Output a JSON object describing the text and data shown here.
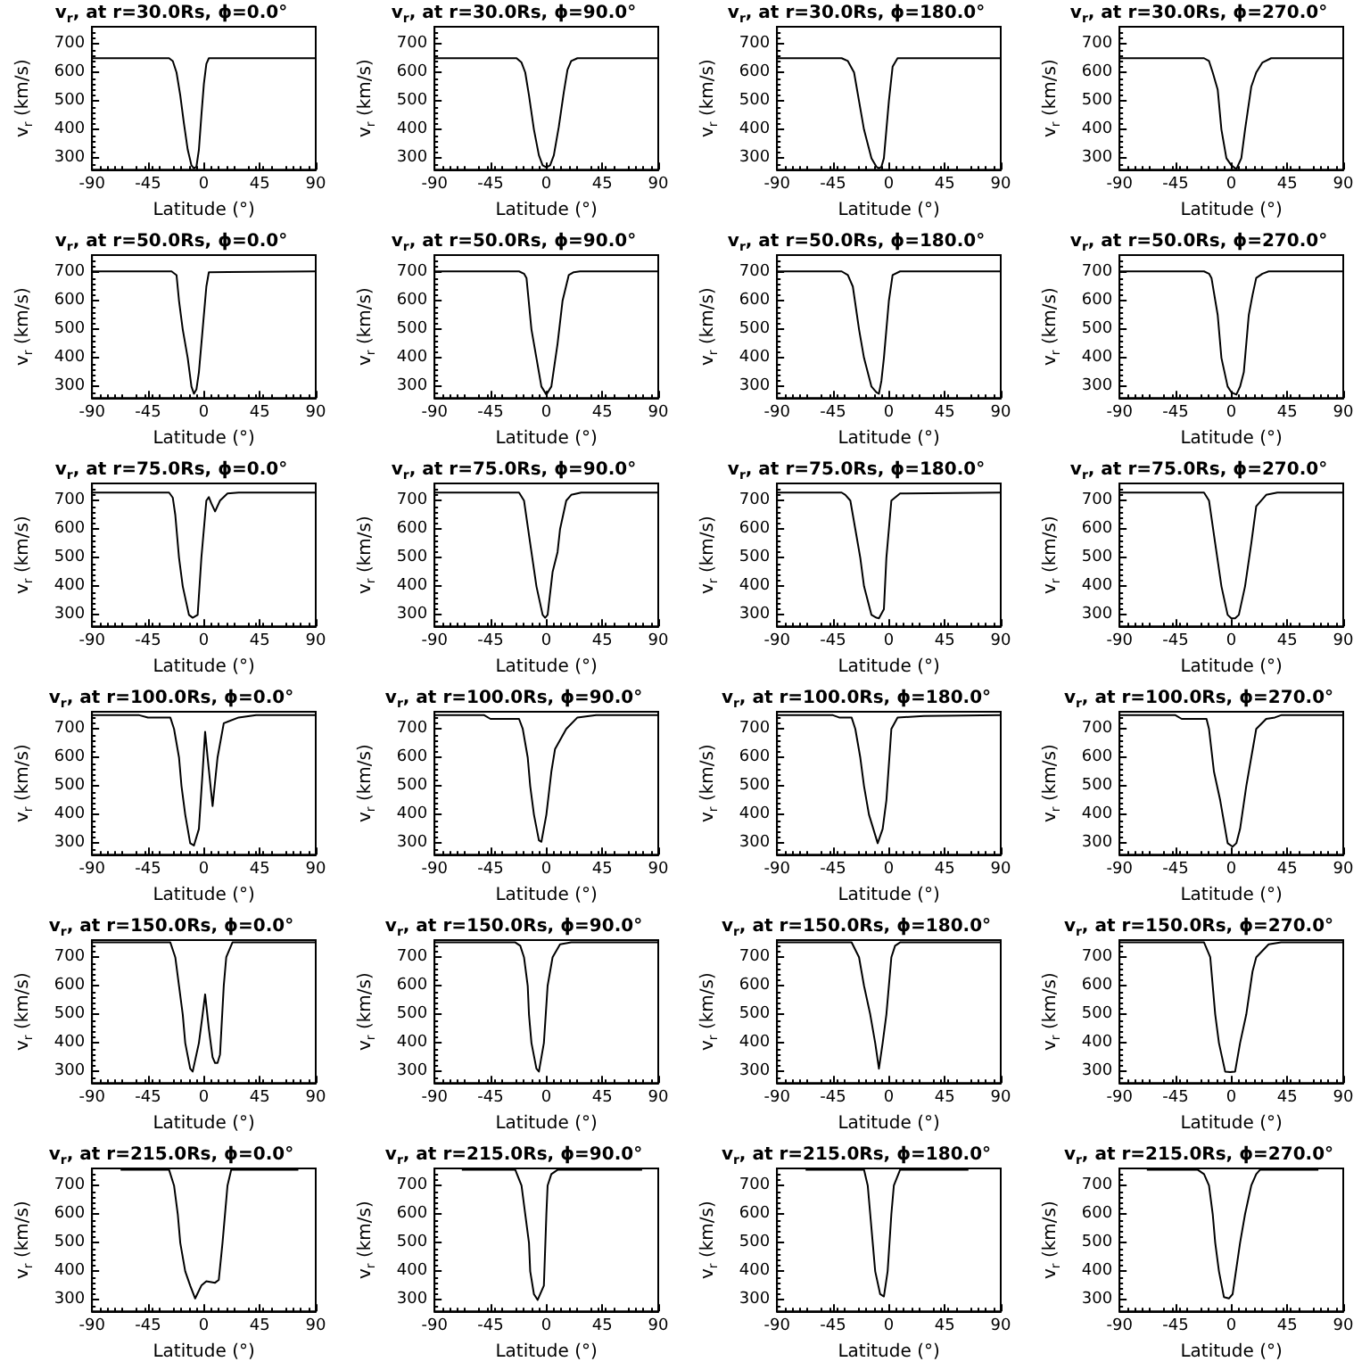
{
  "chart_data": [
    {
      "type": "line",
      "title": "v$_{r}$, at r=30.0Rs, ϕ=0.0°",
      "xlabel": "Latitude (°)",
      "ylabel": "v$_{r}$ (km/s)",
      "xlim": [
        -90,
        90
      ],
      "xticks": [
        -90,
        -45,
        0,
        45,
        90
      ],
      "ylim": [
        260,
        760
      ],
      "yticks": [
        300,
        400,
        500,
        600,
        700
      ],
      "series": [
        {
          "color": "#000000",
          "x": [
            -90,
            -28,
            -25,
            -22,
            -19,
            -16,
            -13,
            -10,
            -8,
            -6,
            -4,
            -2,
            0,
            2,
            4,
            90
          ],
          "values": [
            650,
            650,
            640,
            600,
            520,
            420,
            330,
            275,
            265,
            270,
            330,
            450,
            560,
            630,
            650,
            650
          ]
        }
      ]
    },
    {
      "type": "line",
      "title": "v$_{r}$, at r=30.0Rs, ϕ=90.0°",
      "xlabel": "Latitude (°)",
      "ylabel": "v$_{r}$ (km/s)",
      "xlim": [
        -90,
        90
      ],
      "xticks": [
        -90,
        -45,
        0,
        45,
        90
      ],
      "ylim": [
        260,
        760
      ],
      "yticks": [
        300,
        400,
        500,
        600,
        700
      ],
      "series": [
        {
          "color": "#000000",
          "x": [
            -90,
            -24,
            -20,
            -17,
            -14,
            -10,
            -6,
            -3,
            0,
            3,
            6,
            10,
            14,
            17,
            20,
            25,
            90
          ],
          "values": [
            650,
            650,
            635,
            600,
            520,
            400,
            310,
            275,
            268,
            275,
            310,
            410,
            530,
            610,
            640,
            650,
            650
          ]
        }
      ]
    },
    {
      "type": "line",
      "title": "v$_{r}$, at r=30.0Rs, ϕ=180.0°",
      "xlabel": "Latitude (°)",
      "ylabel": "v$_{r}$ (km/s)",
      "xlim": [
        -90,
        90
      ],
      "xticks": [
        -90,
        -45,
        0,
        45,
        90
      ],
      "ylim": [
        260,
        760
      ],
      "yticks": [
        300,
        400,
        500,
        600,
        700
      ],
      "series": [
        {
          "color": "#000000",
          "x": [
            -90,
            -38,
            -33,
            -28,
            -24,
            -20,
            -14,
            -10,
            -8,
            -6,
            -4,
            -2,
            0,
            3,
            7,
            90
          ],
          "values": [
            650,
            650,
            640,
            600,
            500,
            400,
            300,
            270,
            265,
            270,
            300,
            400,
            500,
            620,
            650,
            650
          ]
        }
      ]
    },
    {
      "type": "line",
      "title": "v$_{r}$, at r=30.0Rs, ϕ=270.0°",
      "xlabel": "Latitude (°)",
      "ylabel": "v$_{r}$ (km/s)",
      "xlim": [
        -90,
        90
      ],
      "xticks": [
        -90,
        -45,
        0,
        45,
        90
      ],
      "ylim": [
        260,
        760
      ],
      "yticks": [
        300,
        400,
        500,
        600,
        700
      ],
      "series": [
        {
          "color": "#000000",
          "x": [
            -90,
            -22,
            -18,
            -15,
            -11,
            -8,
            -4,
            0,
            4,
            8,
            11,
            16,
            20,
            25,
            32,
            90
          ],
          "values": [
            650,
            650,
            640,
            600,
            540,
            400,
            300,
            275,
            262,
            300,
            400,
            550,
            600,
            635,
            650,
            650
          ]
        }
      ]
    },
    {
      "type": "line",
      "title": "v$_{r}$, at r=50.0Rs, ϕ=0.0°",
      "xlabel": "Latitude (°)",
      "ylabel": "v$_{r}$ (km/s)",
      "xlim": [
        -90,
        90
      ],
      "xticks": [
        -90,
        -45,
        0,
        45,
        90
      ],
      "ylim": [
        260,
        760
      ],
      "yticks": [
        300,
        400,
        500,
        600,
        700
      ],
      "series": [
        {
          "color": "#000000",
          "x": [
            -90,
            -26,
            -22,
            -20,
            -17,
            -13,
            -10,
            -8,
            -6,
            -4,
            -1,
            2,
            4,
            90
          ],
          "values": [
            703,
            703,
            690,
            600,
            500,
            400,
            300,
            275,
            290,
            350,
            500,
            650,
            700,
            703
          ]
        }
      ]
    },
    {
      "type": "line",
      "title": "v$_{r}$, at r=50.0Rs, ϕ=90.0°",
      "xlabel": "Latitude (°)",
      "ylabel": "v$_{r}$ (km/s)",
      "xlim": [
        -90,
        90
      ],
      "xticks": [
        -90,
        -45,
        0,
        45,
        90
      ],
      "ylim": [
        260,
        760
      ],
      "yticks": [
        300,
        400,
        500,
        600,
        700
      ],
      "series": [
        {
          "color": "#000000",
          "x": [
            -90,
            -22,
            -18,
            -16,
            -12,
            -8,
            -4,
            0,
            4,
            9,
            13,
            18,
            22,
            27,
            90
          ],
          "values": [
            703,
            703,
            695,
            680,
            500,
            400,
            300,
            272,
            300,
            450,
            600,
            690,
            700,
            703,
            703
          ]
        }
      ]
    },
    {
      "type": "line",
      "title": "v$_{r}$, at r=50.0Rs, ϕ=180.0°",
      "xlabel": "Latitude (°)",
      "ylabel": "v$_{r}$ (km/s)",
      "xlim": [
        -90,
        90
      ],
      "xticks": [
        -90,
        -45,
        0,
        45,
        90
      ],
      "ylim": [
        260,
        760
      ],
      "yticks": [
        300,
        400,
        500,
        600,
        700
      ],
      "series": [
        {
          "color": "#000000",
          "x": [
            -90,
            -38,
            -33,
            -29,
            -24,
            -20,
            -14,
            -10,
            -8,
            -6,
            -4,
            0,
            3,
            9,
            90
          ],
          "values": [
            703,
            703,
            690,
            650,
            500,
            400,
            300,
            280,
            275,
            320,
            400,
            600,
            690,
            703,
            703
          ]
        }
      ]
    },
    {
      "type": "line",
      "title": "v$_{r}$, at r=50.0Rs, ϕ=270.0°",
      "xlabel": "Latitude (°)",
      "ylabel": "v$_{r}$ (km/s)",
      "xlim": [
        -90,
        90
      ],
      "xticks": [
        -90,
        -45,
        0,
        45,
        90
      ],
      "ylim": [
        260,
        760
      ],
      "yticks": [
        300,
        400,
        500,
        600,
        700
      ],
      "series": [
        {
          "color": "#000000",
          "x": [
            -90,
            -22,
            -18,
            -16,
            -11,
            -8,
            -3,
            0,
            4,
            7,
            10,
            14,
            17,
            20,
            25,
            30,
            90
          ],
          "values": [
            703,
            703,
            695,
            680,
            550,
            400,
            300,
            280,
            272,
            300,
            350,
            550,
            620,
            680,
            695,
            703,
            703
          ]
        }
      ]
    },
    {
      "type": "line",
      "title": "v$_{r}$, at r=75.0Rs, ϕ=0.0°",
      "xlabel": "Latitude (°)",
      "ylabel": "v$_{r}$ (km/s)",
      "xlim": [
        -90,
        90
      ],
      "xticks": [
        -90,
        -45,
        0,
        45,
        90
      ],
      "ylim": [
        260,
        760
      ],
      "yticks": [
        300,
        400,
        500,
        600,
        700
      ],
      "series": [
        {
          "color": "#000000",
          "x": [
            -90,
            -28,
            -25,
            -23,
            -20,
            -17,
            -12,
            -9,
            -5,
            -2,
            2,
            4,
            6,
            9,
            13,
            19,
            28,
            90
          ],
          "values": [
            728,
            728,
            710,
            650,
            500,
            400,
            300,
            290,
            300,
            500,
            700,
            712,
            690,
            662,
            700,
            725,
            728,
            728
          ]
        }
      ]
    },
    {
      "type": "line",
      "title": "v$_{r}$, at r=75.0Rs, ϕ=90.0°",
      "xlabel": "Latitude (°)",
      "ylabel": "v$_{r}$ (km/s)",
      "xlim": [
        -90,
        90
      ],
      "xticks": [
        -90,
        -45,
        0,
        45,
        90
      ],
      "ylim": [
        260,
        760
      ],
      "yticks": [
        300,
        400,
        500,
        600,
        700
      ],
      "series": [
        {
          "color": "#000000",
          "x": [
            -90,
            -22,
            -18,
            -13,
            -8,
            -3,
            -1,
            1,
            5,
            9,
            11,
            16,
            20,
            28,
            90
          ],
          "values": [
            728,
            728,
            700,
            550,
            400,
            300,
            290,
            300,
            450,
            520,
            600,
            700,
            720,
            728,
            728
          ]
        }
      ]
    },
    {
      "type": "line",
      "title": "v$_{r}$, at r=75.0Rs, ϕ=180.0°",
      "xlabel": "Latitude (°)",
      "ylabel": "v$_{r}$ (km/s)",
      "xlim": [
        -90,
        90
      ],
      "xticks": [
        -90,
        -45,
        0,
        45,
        90
      ],
      "ylim": [
        260,
        760
      ],
      "yticks": [
        300,
        400,
        500,
        600,
        700
      ],
      "series": [
        {
          "color": "#000000",
          "x": [
            -90,
            -38,
            -35,
            -31,
            -27,
            -23,
            -20,
            -14,
            -10,
            -8,
            -4,
            -2,
            2,
            9,
            90
          ],
          "values": [
            728,
            728,
            720,
            700,
            600,
            500,
            400,
            300,
            290,
            288,
            320,
            500,
            700,
            725,
            728
          ]
        }
      ]
    },
    {
      "type": "line",
      "title": "v$_{r}$, at r=75.0Rs, ϕ=270.0°",
      "xlabel": "Latitude (°)",
      "ylabel": "v$_{r}$ (km/s)",
      "xlim": [
        -90,
        90
      ],
      "xticks": [
        -90,
        -45,
        0,
        45,
        90
      ],
      "ylim": [
        260,
        760
      ],
      "yticks": [
        300,
        400,
        500,
        600,
        700
      ],
      "series": [
        {
          "color": "#000000",
          "x": [
            -90,
            -22,
            -18,
            -13,
            -8,
            -3,
            0,
            3,
            6,
            11,
            16,
            20,
            28,
            37,
            90
          ],
          "values": [
            728,
            728,
            700,
            550,
            400,
            300,
            288,
            288,
            300,
            400,
            550,
            680,
            720,
            728,
            728
          ]
        }
      ]
    },
    {
      "type": "line",
      "title": "v$_{r}$, at r=100.0Rs, ϕ=0.0°",
      "xlabel": "Latitude (°)",
      "ylabel": "v$_{r}$ (km/s)",
      "xlim": [
        -90,
        90
      ],
      "xticks": [
        -90,
        -45,
        0,
        45,
        90
      ],
      "ylim": [
        260,
        760
      ],
      "yticks": [
        300,
        400,
        500,
        600,
        700
      ],
      "series": [
        {
          "color": "#000000",
          "x": [
            -90,
            -52,
            -45,
            -27,
            -24,
            -20,
            -18,
            -15,
            -11,
            -8,
            -4,
            -1,
            1,
            3,
            7,
            11,
            16,
            28,
            42,
            90
          ],
          "values": [
            748,
            748,
            740,
            740,
            700,
            600,
            500,
            400,
            300,
            292,
            350,
            550,
            690,
            600,
            430,
            600,
            720,
            740,
            748,
            748
          ]
        }
      ]
    },
    {
      "type": "line",
      "title": "v$_{r}$, at r=100.0Rs, ϕ=90.0°",
      "xlabel": "Latitude (°)",
      "ylabel": "v$_{r}$ (km/s)",
      "xlim": [
        -90,
        90
      ],
      "xticks": [
        -90,
        -45,
        0,
        45,
        90
      ],
      "ylim": [
        260,
        760
      ],
      "yticks": [
        300,
        400,
        500,
        600,
        700
      ],
      "series": [
        {
          "color": "#000000",
          "x": [
            -90,
            -50,
            -45,
            -22,
            -19,
            -15,
            -13,
            -10,
            -6,
            -4,
            0,
            4,
            7,
            16,
            25,
            40,
            90
          ],
          "values": [
            748,
            748,
            735,
            735,
            700,
            600,
            500,
            400,
            310,
            305,
            400,
            550,
            630,
            700,
            740,
            748,
            748
          ]
        }
      ]
    },
    {
      "type": "line",
      "title": "v$_{r}$, at r=100.0Rs, ϕ=180.0°",
      "xlabel": "Latitude (°)",
      "ylabel": "v$_{r}$ (km/s)",
      "xlim": [
        -90,
        90
      ],
      "xticks": [
        -90,
        -45,
        0,
        45,
        90
      ],
      "ylim": [
        260,
        760
      ],
      "yticks": [
        300,
        400,
        500,
        600,
        700
      ],
      "series": [
        {
          "color": "#000000",
          "x": [
            -90,
            -45,
            -40,
            -30,
            -27,
            -23,
            -20,
            -16,
            -9,
            -5,
            -2,
            2,
            7,
            28,
            90
          ],
          "values": [
            748,
            748,
            740,
            740,
            700,
            600,
            500,
            400,
            300,
            350,
            450,
            700,
            740,
            745,
            748
          ]
        }
      ]
    },
    {
      "type": "line",
      "title": "v$_{r}$, at r=100.0Rs, ϕ=270.0°",
      "xlabel": "Latitude (°)",
      "ylabel": "v$_{r}$ (km/s)",
      "xlim": [
        -90,
        90
      ],
      "xticks": [
        -90,
        -45,
        0,
        45,
        90
      ],
      "ylim": [
        260,
        760
      ],
      "yticks": [
        300,
        400,
        500,
        600,
        700
      ],
      "series": [
        {
          "color": "#000000",
          "x": [
            -90,
            -45,
            -40,
            -20,
            -18,
            -14,
            -9,
            -3,
            1,
            4,
            7,
            12,
            16,
            20,
            28,
            35,
            40,
            90
          ],
          "values": [
            748,
            748,
            735,
            735,
            700,
            550,
            450,
            300,
            288,
            300,
            350,
            500,
            600,
            700,
            735,
            740,
            748,
            748
          ]
        }
      ]
    },
    {
      "type": "line",
      "title": "v$_{r}$, at r=150.0Rs, ϕ=0.0°",
      "xlabel": "Latitude (°)",
      "ylabel": "v$_{r}$ (km/s)",
      "xlim": [
        -90,
        90
      ],
      "xticks": [
        -90,
        -45,
        0,
        45,
        90
      ],
      "ylim": [
        260,
        760
      ],
      "yticks": [
        300,
        400,
        500,
        600,
        700
      ],
      "series": [
        {
          "color": "#000000",
          "x": [
            -90,
            -27,
            -23,
            -20,
            -17,
            -15,
            -11,
            -9,
            -4,
            -1,
            1,
            4,
            7,
            9,
            11,
            13,
            16,
            18,
            23,
            90
          ],
          "values": [
            752,
            752,
            700,
            600,
            500,
            400,
            310,
            300,
            400,
            500,
            570,
            450,
            350,
            330,
            330,
            360,
            600,
            700,
            752,
            752
          ]
        }
      ]
    },
    {
      "type": "line",
      "title": "v$_{r}$, at r=150.0Rs, ϕ=90.0°",
      "xlabel": "Latitude (°)",
      "ylabel": "v$_{r}$ (km/s)",
      "xlim": [
        -90,
        90
      ],
      "xticks": [
        -90,
        -45,
        0,
        45,
        90
      ],
      "ylim": [
        260,
        760
      ],
      "yticks": [
        300,
        400,
        500,
        600,
        700
      ],
      "series": [
        {
          "color": "#000000",
          "x": [
            -90,
            -25,
            -21,
            -18,
            -15,
            -14,
            -12,
            -8,
            -6,
            -2,
            1,
            5,
            11,
            20,
            90
          ],
          "values": [
            752,
            752,
            740,
            700,
            600,
            500,
            400,
            310,
            300,
            400,
            600,
            700,
            745,
            752,
            752
          ]
        }
      ]
    },
    {
      "type": "line",
      "title": "v$_{r}$, at r=150.0Rs, ϕ=180.0°",
      "xlabel": "Latitude (°)",
      "ylabel": "v$_{r}$ (km/s)",
      "xlim": [
        -90,
        90
      ],
      "xticks": [
        -90,
        -45,
        0,
        45,
        90
      ],
      "ylim": [
        260,
        760
      ],
      "yticks": [
        300,
        400,
        500,
        600,
        700
      ],
      "series": [
        {
          "color": "#000000",
          "x": [
            -90,
            -30,
            -24,
            -20,
            -15,
            -11,
            -8,
            -5,
            -2,
            2,
            5,
            9,
            90
          ],
          "values": [
            752,
            752,
            700,
            600,
            500,
            400,
            310,
            400,
            500,
            700,
            740,
            752,
            752
          ]
        }
      ]
    },
    {
      "type": "line",
      "title": "v$_{r}$, at r=150.0Rs, ϕ=270.0°",
      "xlabel": "Latitude (°)",
      "ylabel": "v$_{r}$ (km/s)",
      "xlim": [
        -90,
        90
      ],
      "xticks": [
        -90,
        -45,
        0,
        45,
        90
      ],
      "ylim": [
        260,
        760
      ],
      "yticks": [
        300,
        400,
        500,
        600,
        700
      ],
      "series": [
        {
          "color": "#000000",
          "x": [
            -90,
            -22,
            -17,
            -13,
            -10,
            -5,
            -1,
            3,
            7,
            12,
            17,
            20,
            30,
            40,
            90
          ],
          "values": [
            752,
            752,
            700,
            500,
            400,
            300,
            298,
            300,
            400,
            500,
            650,
            700,
            745,
            752,
            752
          ]
        }
      ]
    },
    {
      "type": "line",
      "title": "v$_{r}$, at r=215.0Rs, ϕ=0.0°",
      "xlabel": "Latitude (°)",
      "ylabel": "v$_{r}$ (km/s)",
      "xlim": [
        -90,
        90
      ],
      "xticks": [
        -90,
        -45,
        0,
        45,
        90
      ],
      "ylim": [
        260,
        760
      ],
      "yticks": [
        300,
        400,
        500,
        600,
        700
      ],
      "series": [
        {
          "color": "#000000",
          "x": [
            -67,
            -28,
            -24,
            -21,
            -19,
            -15,
            -11,
            -7,
            -2,
            2,
            9,
            12,
            15,
            19,
            22,
            76
          ],
          "values": [
            755,
            755,
            700,
            600,
            500,
            400,
            350,
            305,
            350,
            365,
            360,
            370,
            500,
            700,
            755,
            755
          ]
        }
      ]
    },
    {
      "type": "line",
      "title": "v$_{r}$, at r=215.0Rs, ϕ=90.0°",
      "xlabel": "Latitude (°)",
      "ylabel": "v$_{r}$ (km/s)",
      "xlim": [
        -90,
        90
      ],
      "xticks": [
        -90,
        -45,
        0,
        45,
        90
      ],
      "ylim": [
        260,
        760
      ],
      "yticks": [
        300,
        400,
        500,
        600,
        700
      ],
      "series": [
        {
          "color": "#000000",
          "x": [
            -68,
            -25,
            -20,
            -17,
            -14,
            -13,
            -10,
            -7,
            -2,
            0,
            1,
            4,
            9,
            77
          ],
          "values": [
            755,
            755,
            700,
            600,
            500,
            400,
            320,
            300,
            350,
            600,
            700,
            740,
            755,
            755
          ]
        }
      ]
    },
    {
      "type": "line",
      "title": "v$_{r}$, at r=215.0Rs, ϕ=180.0°",
      "xlabel": "Latitude (°)",
      "ylabel": "v$_{r}$ (km/s)",
      "xlim": [
        -90,
        90
      ],
      "xticks": [
        -90,
        -45,
        0,
        45,
        90
      ],
      "ylim": [
        260,
        760
      ],
      "yticks": [
        300,
        400,
        500,
        600,
        700
      ],
      "series": [
        {
          "color": "#000000",
          "x": [
            -67,
            -20,
            -17,
            -15,
            -13,
            -11,
            -7,
            -4,
            -1,
            2,
            4,
            9,
            64
          ],
          "values": [
            755,
            755,
            700,
            600,
            500,
            400,
            320,
            312,
            400,
            600,
            700,
            755,
            755
          ]
        }
      ]
    },
    {
      "type": "line",
      "title": "v$_{r}$, at r=215.0Rs, ϕ=270.0°",
      "xlabel": "Latitude (°)",
      "ylabel": "v$_{r}$ (km/s)",
      "xlim": [
        -90,
        90
      ],
      "xticks": [
        -90,
        -45,
        0,
        45,
        90
      ],
      "ylim": [
        260,
        760
      ],
      "yticks": [
        300,
        400,
        500,
        600,
        700
      ],
      "series": [
        {
          "color": "#000000",
          "x": [
            -68,
            -27,
            -22,
            -18,
            -15,
            -13,
            -10,
            -6,
            -2,
            1,
            7,
            11,
            16,
            20,
            23,
            70
          ],
          "values": [
            755,
            755,
            740,
            700,
            600,
            500,
            400,
            310,
            305,
            320,
            500,
            600,
            700,
            740,
            755,
            755
          ]
        }
      ]
    }
  ]
}
